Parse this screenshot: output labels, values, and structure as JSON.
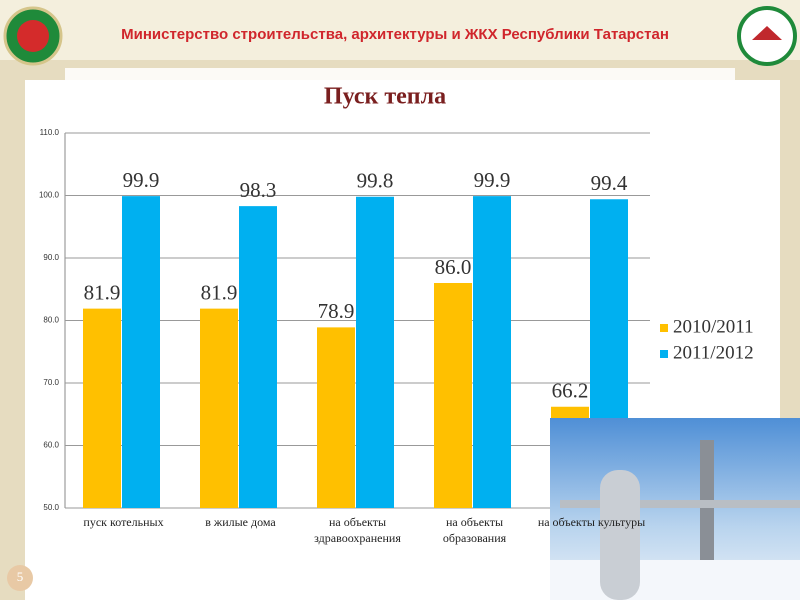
{
  "header": {
    "title": "Министерство строительства, архитектуры и ЖКХ Республики Татарстан"
  },
  "page_number": 5,
  "chart_data": {
    "type": "bar",
    "title": "Пуск тепла",
    "categories": [
      "пуск котельных",
      "в жилые дома",
      "на объекты здравоохранения",
      "на объекты образования",
      "на объекты культуры"
    ],
    "series": [
      {
        "name": "2010/2011",
        "color": "#FFC000",
        "values": [
          81.9,
          81.9,
          78.9,
          86.0,
          66.2
        ],
        "value_labels": [
          "81.9",
          "81.9",
          "78.9",
          "86.0",
          "66.2"
        ]
      },
      {
        "name": "2011/2012",
        "color": "#00B0F0",
        "values": [
          99.9,
          98.3,
          99.8,
          99.9,
          99.4
        ]
      }
    ],
    "ylim": [
      50,
      110
    ],
    "yticks": [
      {
        "value": 50,
        "label": "50.0"
      },
      {
        "value": 60,
        "label": "60.0"
      },
      {
        "value": 70,
        "label": "70.0"
      },
      {
        "value": 80,
        "label": "80.0"
      },
      {
        "value": 90,
        "label": "90.0"
      },
      {
        "value": 100,
        "label": "100.0"
      },
      {
        "value": 110,
        "label": "110.0"
      }
    ],
    "grid": true,
    "legend": "right"
  }
}
